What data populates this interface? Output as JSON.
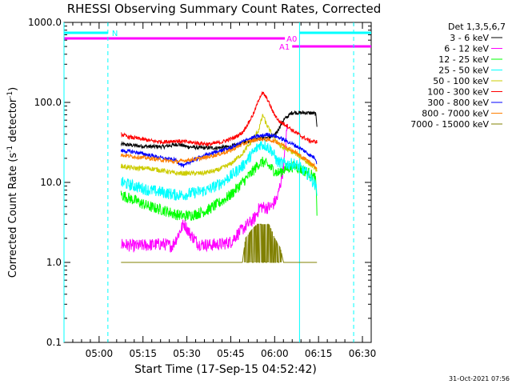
{
  "chart_data": {
    "type": "line",
    "title": "RHESSI Observing Summary Count Rates, Corrected",
    "ylabel": "Corrected Count Rate (s-1 detector-1)",
    "ylabel_parts": {
      "pre": "Corrected Count Rate (s",
      "sup1": "-1",
      "mid": " detector",
      "sup2": "-1",
      "post": ")"
    },
    "xlabel": "Start Time (17-Sep-15 04:52:42)",
    "yscale": "log",
    "ylim": [
      0.1,
      1000
    ],
    "y_ticks": [
      "0.1",
      "1.0",
      "10.0",
      "100.0",
      "1000.0"
    ],
    "x_ticks": [
      "05:00",
      "05:15",
      "05:30",
      "05:45",
      "06:00",
      "06:15",
      "06:30"
    ],
    "x_range_min": [
      -12,
      93
    ],
    "timestamp": "31-Oct-2021 07:56",
    "legend_title": "Det 1,3,5,6,7",
    "series": [
      {
        "name": "3 - 6 keV",
        "color": "#000000",
        "values": [
          [
            7.5,
            30
          ],
          [
            12,
            29
          ],
          [
            17,
            28
          ],
          [
            22,
            28
          ],
          [
            27,
            30
          ],
          [
            30,
            28
          ],
          [
            35,
            27
          ],
          [
            40,
            27
          ],
          [
            45,
            28
          ],
          [
            48,
            30
          ],
          [
            51,
            33
          ],
          [
            54,
            35
          ],
          [
            57,
            36
          ],
          [
            60,
            38
          ],
          [
            63,
            60
          ],
          [
            66,
            75
          ],
          [
            69,
            74
          ],
          [
            72,
            74
          ],
          [
            74,
            72
          ],
          [
            74.5,
            50
          ]
        ]
      },
      {
        "name": "6 - 12 keV",
        "color": "#ff00ff",
        "values": [
          [
            7.5,
            1.7
          ],
          [
            12,
            1.6
          ],
          [
            17,
            1.65
          ],
          [
            22,
            1.7
          ],
          [
            25,
            1.6
          ],
          [
            27,
            2.2
          ],
          [
            29,
            3.1
          ],
          [
            31,
            2.3
          ],
          [
            34,
            1.7
          ],
          [
            38,
            1.65
          ],
          [
            42,
            1.7
          ],
          [
            45,
            1.8
          ],
          [
            47,
            2.2
          ],
          [
            50,
            2.8
          ],
          [
            53,
            3.5
          ],
          [
            55,
            5
          ],
          [
            57,
            4.8
          ],
          [
            59,
            5
          ],
          [
            61,
            6.5
          ],
          [
            63,
            15
          ],
          [
            64.5,
            60
          ]
        ]
      },
      {
        "name": "12 - 25 keV",
        "color": "#00ff00",
        "values": [
          [
            7.5,
            7
          ],
          [
            12,
            6
          ],
          [
            17,
            5
          ],
          [
            22,
            4.5
          ],
          [
            26,
            4
          ],
          [
            29,
            3.8
          ],
          [
            33,
            4
          ],
          [
            37,
            4.5
          ],
          [
            41,
            5.5
          ],
          [
            45,
            7
          ],
          [
            49,
            10
          ],
          [
            52,
            13
          ],
          [
            54.5,
            17
          ],
          [
            56,
            18
          ],
          [
            58,
            16
          ],
          [
            61,
            13
          ],
          [
            64,
            15
          ],
          [
            67,
            16
          ],
          [
            70,
            14
          ],
          [
            72,
            13
          ],
          [
            74,
            11
          ],
          [
            74.5,
            4
          ]
        ]
      },
      {
        "name": "25 - 50 keV",
        "color": "#00ffff",
        "values": [
          [
            7.5,
            10
          ],
          [
            12,
            9
          ],
          [
            17,
            8
          ],
          [
            22,
            7.5
          ],
          [
            26,
            7
          ],
          [
            29,
            7
          ],
          [
            33,
            7.5
          ],
          [
            37,
            8
          ],
          [
            41,
            9.5
          ],
          [
            45,
            12
          ],
          [
            49,
            16
          ],
          [
            52,
            22
          ],
          [
            55,
            30
          ],
          [
            57,
            29
          ],
          [
            59,
            25
          ],
          [
            61,
            18
          ],
          [
            64,
            17
          ],
          [
            67,
            17
          ],
          [
            70,
            14
          ],
          [
            72,
            12
          ],
          [
            74,
            9
          ],
          [
            74.5,
            8
          ]
        ]
      },
      {
        "name": "50 - 100 keV",
        "color": "#cccc00",
        "values": [
          [
            7.5,
            16
          ],
          [
            12,
            15
          ],
          [
            17,
            15
          ],
          [
            22,
            14
          ],
          [
            26,
            13
          ],
          [
            30,
            13
          ],
          [
            35,
            13
          ],
          [
            40,
            14
          ],
          [
            45,
            17
          ],
          [
            49,
            23
          ],
          [
            52,
            32
          ],
          [
            54.5,
            45
          ],
          [
            56,
            70
          ],
          [
            57,
            55
          ],
          [
            59,
            40
          ],
          [
            62,
            28
          ],
          [
            65,
            25
          ],
          [
            68,
            22
          ],
          [
            71,
            18
          ],
          [
            74,
            15
          ],
          [
            74.5,
            13
          ]
        ]
      },
      {
        "name": "100 - 300 keV",
        "color": "#ff0000",
        "values": [
          [
            7.5,
            40
          ],
          [
            10,
            37
          ],
          [
            14,
            35
          ],
          [
            18,
            33
          ],
          [
            22,
            32
          ],
          [
            26,
            33
          ],
          [
            30,
            32
          ],
          [
            34,
            31
          ],
          [
            38,
            30
          ],
          [
            42,
            32
          ],
          [
            46,
            36
          ],
          [
            49,
            42
          ],
          [
            51,
            55
          ],
          [
            53,
            75
          ],
          [
            55,
            120
          ],
          [
            56,
            130
          ],
          [
            57.5,
            110
          ],
          [
            59.5,
            75
          ],
          [
            61.5,
            58
          ],
          [
            64,
            52
          ],
          [
            66,
            45
          ],
          [
            69,
            38
          ],
          [
            72,
            33
          ],
          [
            74.5,
            32
          ]
        ]
      },
      {
        "name": "300 - 800 keV",
        "color": "#0000ff",
        "values": [
          [
            7.5,
            25
          ],
          [
            12,
            24
          ],
          [
            17,
            22
          ],
          [
            22,
            20
          ],
          [
            26,
            19
          ],
          [
            29,
            16
          ],
          [
            31,
            18
          ],
          [
            35,
            21
          ],
          [
            40,
            24
          ],
          [
            45,
            27
          ],
          [
            49,
            32
          ],
          [
            52,
            36
          ],
          [
            55,
            38
          ],
          [
            58,
            40
          ],
          [
            61,
            37
          ],
          [
            64,
            33
          ],
          [
            67,
            29
          ],
          [
            70,
            25
          ],
          [
            72,
            22
          ],
          [
            74,
            20
          ],
          [
            74.5,
            17
          ]
        ]
      },
      {
        "name": "800 - 7000 keV",
        "color": "#ff7f00",
        "values": [
          [
            7.5,
            22
          ],
          [
            12,
            21
          ],
          [
            17,
            20
          ],
          [
            22,
            19
          ],
          [
            26,
            18
          ],
          [
            30,
            19
          ],
          [
            35,
            20
          ],
          [
            40,
            22
          ],
          [
            45,
            25
          ],
          [
            49,
            30
          ],
          [
            52,
            33
          ],
          [
            55,
            35
          ],
          [
            58,
            34
          ],
          [
            61,
            32
          ],
          [
            64,
            28
          ],
          [
            67,
            24
          ],
          [
            70,
            20
          ],
          [
            72,
            18
          ],
          [
            74.5,
            15
          ]
        ]
      },
      {
        "name": "7000 - 15000 keV",
        "color": "#808000",
        "values": [
          [
            7.5,
            1.0
          ],
          [
            12,
            1.0
          ],
          [
            17,
            1.0
          ],
          [
            22,
            1.0
          ],
          [
            27,
            1.0
          ],
          [
            32,
            1.0
          ],
          [
            37,
            1.0
          ],
          [
            42,
            1.0
          ],
          [
            47,
            1.0
          ],
          [
            49,
            1.0
          ],
          [
            50,
            2.0
          ],
          [
            52,
            2.5
          ],
          [
            54,
            3.0
          ],
          [
            56,
            3.0
          ],
          [
            58,
            3.0
          ],
          [
            59,
            2.5
          ],
          [
            60,
            2.0
          ],
          [
            62,
            1.5
          ],
          [
            63,
            1.0
          ],
          [
            66,
            1.0
          ],
          [
            70,
            1.0
          ],
          [
            74.5,
            1.0
          ]
        ]
      }
    ],
    "state_bars": [
      {
        "label": "N",
        "color": "#00ffff",
        "segments": [
          [
            -12,
            3
          ],
          [
            68.5,
            93
          ]
        ]
      },
      {
        "label": "A0",
        "color": "#ff00ff",
        "segments": [
          [
            -12,
            63.5
          ]
        ]
      },
      {
        "label": "A1",
        "color": "#ff00ff",
        "segments": [
          [
            66,
            93
          ]
        ]
      }
    ],
    "solid_vlines": [
      {
        "x": -12,
        "color": "#00ffff"
      },
      {
        "x": 68.5,
        "color": "#00ffff"
      }
    ],
    "dashed_vlines": [
      {
        "x": 3,
        "color": "#00ffff"
      },
      {
        "x": 87,
        "color": "#00ffff"
      }
    ]
  }
}
